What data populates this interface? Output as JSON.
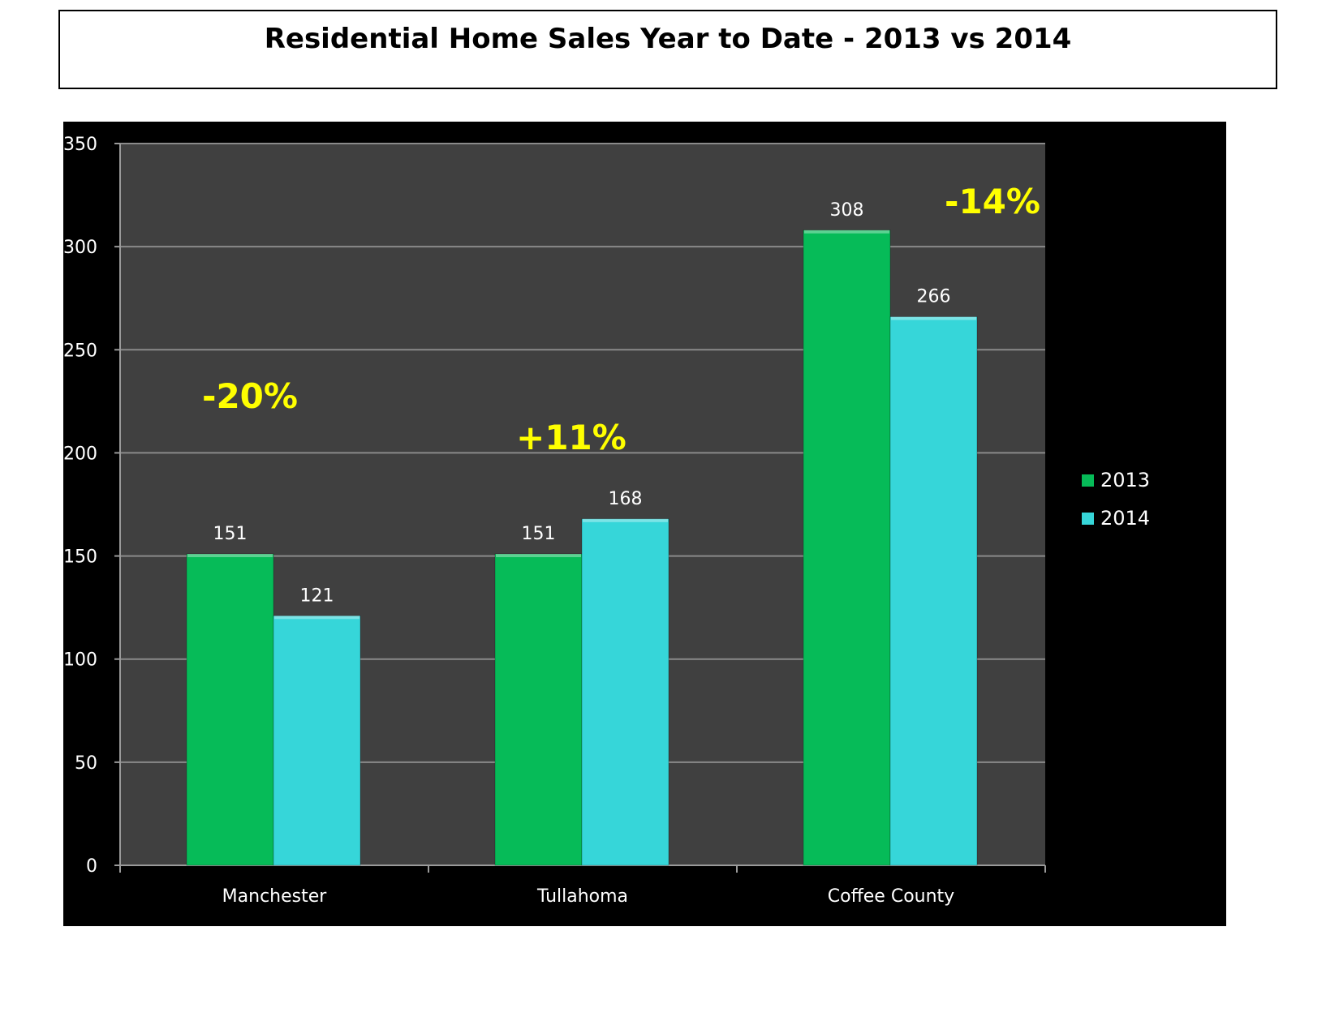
{
  "header": {
    "title": "Residential Home Sales Year to Date -  2013 vs 2014"
  },
  "colors": {
    "series_2013": "#06bb58",
    "series_2014": "#36d6d9",
    "plot_bg": "#404040",
    "chart_bg": "#000000",
    "annotation": "#ffff00"
  },
  "chart_data": {
    "type": "bar",
    "categories": [
      "Manchester",
      "Tullahoma",
      "Coffee County"
    ],
    "series": [
      {
        "name": "2013",
        "values": [
          151,
          151,
          308
        ]
      },
      {
        "name": "2014",
        "values": [
          121,
          168,
          266
        ]
      }
    ],
    "ylim": [
      0,
      350
    ],
    "yticks": [
      0,
      50,
      100,
      150,
      200,
      250,
      300,
      350
    ],
    "ytick_labels": [
      "0",
      "50",
      "100",
      "150",
      "200",
      "250",
      "300",
      "350"
    ],
    "grid": true,
    "legend": "right",
    "annotations": [
      {
        "category": "Manchester",
        "text": "-20%"
      },
      {
        "category": "Tullahoma",
        "text": "+11%"
      },
      {
        "category": "Coffee County",
        "text": "-14%"
      }
    ]
  }
}
